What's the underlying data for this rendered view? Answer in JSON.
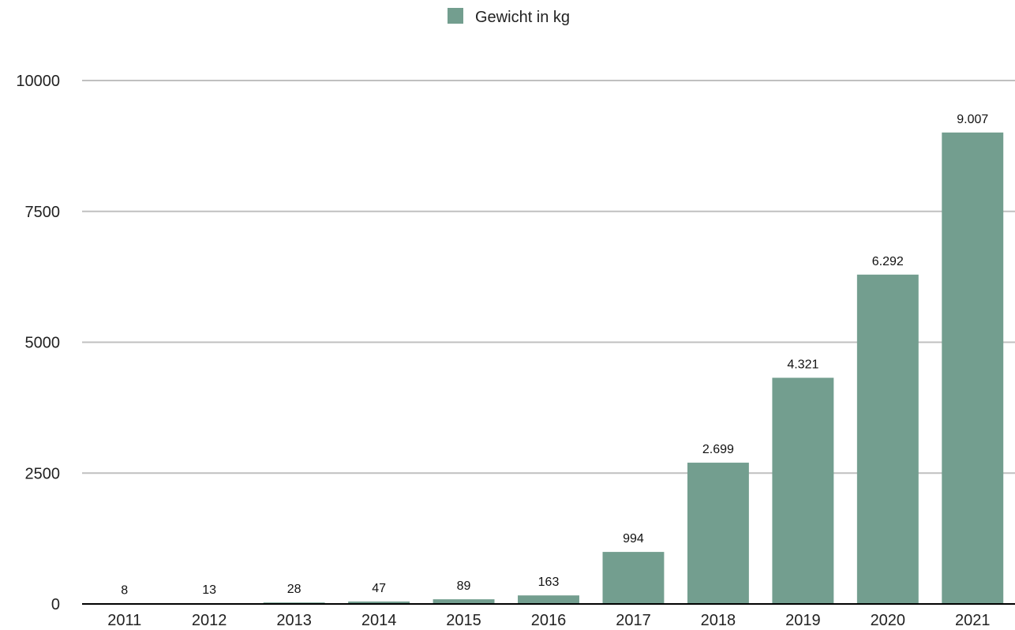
{
  "chart_data": {
    "type": "bar",
    "categories": [
      "2011",
      "2012",
      "2013",
      "2014",
      "2015",
      "2016",
      "2017",
      "2018",
      "2019",
      "2020",
      "2021"
    ],
    "series": [
      {
        "name": "Gewicht in kg",
        "values": [
          8,
          13,
          28,
          47,
          89,
          163,
          994,
          2699,
          4321,
          6292,
          9007
        ],
        "labels": [
          "8",
          "13",
          "28",
          "47",
          "89",
          "163",
          "994",
          "2.699",
          "4.321",
          "6.292",
          "9.007"
        ]
      }
    ],
    "ylim": [
      0,
      10000
    ],
    "yticks": [
      0,
      2500,
      5000,
      7500,
      10000
    ],
    "ytick_labels": [
      "0",
      "2500",
      "5000",
      "7500",
      "10000"
    ],
    "grid": true,
    "legend_position": "top-center",
    "bar_color": "#739e8f",
    "grid_color": "#c0c0c0",
    "axis_color": "#000000"
  }
}
